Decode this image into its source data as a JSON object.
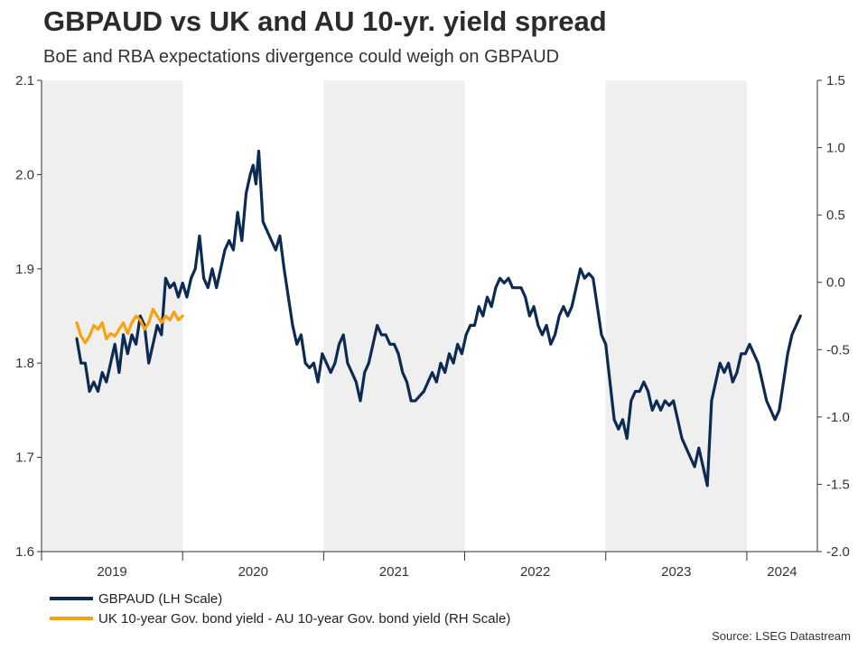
{
  "header": {
    "title": "GBPAUD vs UK and AU 10-yr. yield spread",
    "subtitle": "BoE and RBA expectations divergence could weigh on GBPAUD"
  },
  "source": "Source: LSEG Datastream",
  "colors": {
    "gbpaud": "#0d2a52",
    "spread": "#f7a20e",
    "shade": "#efefef",
    "axis": "#333333"
  },
  "chart_data": {
    "type": "line",
    "title": "GBPAUD vs UK and AU 10-yr. yield spread",
    "subtitle": "BoE and RBA expectations divergence could weigh on GBPAUD",
    "x_unit": "year (decimal)",
    "xlim": [
      2019.0,
      2024.5
    ],
    "xtick_labels": [
      "2019",
      "2020",
      "2021",
      "2022",
      "2023",
      "2024"
    ],
    "shaded_years": [
      "2019",
      "2021",
      "2023"
    ],
    "left_axis": {
      "ylim": [
        1.6,
        2.1
      ],
      "ticks": [
        "1.6",
        "1.7",
        "1.8",
        "1.9",
        "2.0",
        "2.1"
      ]
    },
    "right_axis": {
      "ylim": [
        -2.0,
        1.5
      ],
      "ticks": [
        "-2.0",
        "-1.5",
        "-1.0",
        "-0.5",
        "0.0",
        "0.5",
        "1.0",
        "1.5"
      ]
    },
    "legend_position": "bottom-left",
    "series": [
      {
        "name": "GBPAUD (LH Scale)",
        "axis": "left",
        "points": [
          [
            2019.25,
            1.826
          ],
          [
            2019.28,
            1.8
          ],
          [
            2019.31,
            1.8
          ],
          [
            2019.34,
            1.77
          ],
          [
            2019.37,
            1.78
          ],
          [
            2019.4,
            1.77
          ],
          [
            2019.43,
            1.79
          ],
          [
            2019.46,
            1.78
          ],
          [
            2019.49,
            1.8
          ],
          [
            2019.52,
            1.82
          ],
          [
            2019.55,
            1.79
          ],
          [
            2019.58,
            1.83
          ],
          [
            2019.61,
            1.81
          ],
          [
            2019.64,
            1.83
          ],
          [
            2019.67,
            1.82
          ],
          [
            2019.7,
            1.85
          ],
          [
            2019.73,
            1.84
          ],
          [
            2019.76,
            1.8
          ],
          [
            2019.79,
            1.82
          ],
          [
            2019.82,
            1.84
          ],
          [
            2019.85,
            1.83
          ],
          [
            2019.88,
            1.89
          ],
          [
            2019.91,
            1.88
          ],
          [
            2019.94,
            1.885
          ],
          [
            2019.97,
            1.87
          ],
          [
            2020.0,
            1.885
          ],
          [
            2020.03,
            1.87
          ],
          [
            2020.06,
            1.89
          ],
          [
            2020.09,
            1.9
          ],
          [
            2020.12,
            1.935
          ],
          [
            2020.15,
            1.89
          ],
          [
            2020.18,
            1.88
          ],
          [
            2020.21,
            1.9
          ],
          [
            2020.24,
            1.88
          ],
          [
            2020.27,
            1.9
          ],
          [
            2020.3,
            1.92
          ],
          [
            2020.33,
            1.93
          ],
          [
            2020.36,
            1.92
          ],
          [
            2020.39,
            1.96
          ],
          [
            2020.42,
            1.93
          ],
          [
            2020.45,
            1.98
          ],
          [
            2020.48,
            2.0
          ],
          [
            2020.5,
            2.01
          ],
          [
            2020.52,
            1.99
          ],
          [
            2020.54,
            2.025
          ],
          [
            2020.57,
            1.95
          ],
          [
            2020.6,
            1.94
          ],
          [
            2020.63,
            1.93
          ],
          [
            2020.66,
            1.92
          ],
          [
            2020.69,
            1.935
          ],
          [
            2020.72,
            1.9
          ],
          [
            2020.75,
            1.87
          ],
          [
            2020.78,
            1.84
          ],
          [
            2020.81,
            1.82
          ],
          [
            2020.84,
            1.83
          ],
          [
            2020.87,
            1.8
          ],
          [
            2020.9,
            1.795
          ],
          [
            2020.93,
            1.8
          ],
          [
            2020.96,
            1.78
          ],
          [
            2020.99,
            1.81
          ],
          [
            2021.02,
            1.8
          ],
          [
            2021.05,
            1.79
          ],
          [
            2021.08,
            1.8
          ],
          [
            2021.11,
            1.82
          ],
          [
            2021.14,
            1.83
          ],
          [
            2021.17,
            1.8
          ],
          [
            2021.2,
            1.79
          ],
          [
            2021.23,
            1.78
          ],
          [
            2021.26,
            1.76
          ],
          [
            2021.29,
            1.79
          ],
          [
            2021.32,
            1.8
          ],
          [
            2021.35,
            1.82
          ],
          [
            2021.38,
            1.84
          ],
          [
            2021.41,
            1.83
          ],
          [
            2021.44,
            1.83
          ],
          [
            2021.47,
            1.82
          ],
          [
            2021.5,
            1.82
          ],
          [
            2021.53,
            1.81
          ],
          [
            2021.56,
            1.79
          ],
          [
            2021.59,
            1.78
          ],
          [
            2021.62,
            1.76
          ],
          [
            2021.65,
            1.76
          ],
          [
            2021.68,
            1.765
          ],
          [
            2021.71,
            1.77
          ],
          [
            2021.74,
            1.78
          ],
          [
            2021.77,
            1.79
          ],
          [
            2021.8,
            1.78
          ],
          [
            2021.83,
            1.8
          ],
          [
            2021.86,
            1.79
          ],
          [
            2021.89,
            1.81
          ],
          [
            2021.92,
            1.8
          ],
          [
            2021.95,
            1.82
          ],
          [
            2021.98,
            1.81
          ],
          [
            2022.01,
            1.83
          ],
          [
            2022.04,
            1.84
          ],
          [
            2022.07,
            1.84
          ],
          [
            2022.1,
            1.86
          ],
          [
            2022.13,
            1.85
          ],
          [
            2022.16,
            1.87
          ],
          [
            2022.19,
            1.86
          ],
          [
            2022.22,
            1.88
          ],
          [
            2022.25,
            1.89
          ],
          [
            2022.28,
            1.885
          ],
          [
            2022.31,
            1.89
          ],
          [
            2022.34,
            1.88
          ],
          [
            2022.37,
            1.88
          ],
          [
            2022.4,
            1.88
          ],
          [
            2022.43,
            1.87
          ],
          [
            2022.46,
            1.85
          ],
          [
            2022.49,
            1.86
          ],
          [
            2022.52,
            1.84
          ],
          [
            2022.55,
            1.83
          ],
          [
            2022.58,
            1.84
          ],
          [
            2022.61,
            1.82
          ],
          [
            2022.64,
            1.83
          ],
          [
            2022.67,
            1.85
          ],
          [
            2022.7,
            1.86
          ],
          [
            2022.73,
            1.85
          ],
          [
            2022.76,
            1.86
          ],
          [
            2022.79,
            1.88
          ],
          [
            2022.82,
            1.9
          ],
          [
            2022.85,
            1.89
          ],
          [
            2022.88,
            1.895
          ],
          [
            2022.91,
            1.89
          ],
          [
            2022.94,
            1.86
          ],
          [
            2022.97,
            1.83
          ],
          [
            2023.0,
            1.82
          ],
          [
            2023.03,
            1.78
          ],
          [
            2023.06,
            1.74
          ],
          [
            2023.09,
            1.73
          ],
          [
            2023.12,
            1.74
          ],
          [
            2023.15,
            1.72
          ],
          [
            2023.18,
            1.76
          ],
          [
            2023.21,
            1.77
          ],
          [
            2023.24,
            1.77
          ],
          [
            2023.27,
            1.78
          ],
          [
            2023.3,
            1.77
          ],
          [
            2023.33,
            1.75
          ],
          [
            2023.36,
            1.76
          ],
          [
            2023.39,
            1.75
          ],
          [
            2023.42,
            1.76
          ],
          [
            2023.45,
            1.755
          ],
          [
            2023.48,
            1.76
          ],
          [
            2023.51,
            1.74
          ],
          [
            2023.54,
            1.72
          ],
          [
            2023.57,
            1.71
          ],
          [
            2023.6,
            1.7
          ],
          [
            2023.63,
            1.69
          ],
          [
            2023.66,
            1.71
          ],
          [
            2023.69,
            1.69
          ],
          [
            2023.72,
            1.67
          ],
          [
            2023.75,
            1.76
          ],
          [
            2023.78,
            1.78
          ],
          [
            2023.81,
            1.8
          ],
          [
            2023.84,
            1.79
          ],
          [
            2023.87,
            1.8
          ],
          [
            2023.9,
            1.78
          ],
          [
            2023.93,
            1.79
          ],
          [
            2023.96,
            1.81
          ],
          [
            2023.99,
            1.81
          ],
          [
            2024.02,
            1.82
          ],
          [
            2024.05,
            1.81
          ],
          [
            2024.08,
            1.8
          ],
          [
            2024.11,
            1.78
          ],
          [
            2024.14,
            1.76
          ],
          [
            2024.17,
            1.75
          ],
          [
            2024.2,
            1.74
          ],
          [
            2024.23,
            1.75
          ],
          [
            2024.26,
            1.78
          ],
          [
            2024.29,
            1.81
          ],
          [
            2024.32,
            1.83
          ],
          [
            2024.35,
            1.84
          ],
          [
            2024.38,
            1.85
          ]
        ]
      },
      {
        "name": "UK 10-year Gov. bond yield - AU 10-year Gov. bond yield (RH Scale)",
        "axis": "right",
        "points": [
          [
            2019.25,
            -0.3
          ],
          [
            2019.28,
            -0.4
          ],
          [
            2019.31,
            -0.45
          ],
          [
            2019.34,
            -0.4
          ],
          [
            2019.37,
            -0.32
          ],
          [
            2019.4,
            -0.35
          ],
          [
            2019.43,
            -0.3
          ],
          [
            2019.46,
            -0.42
          ],
          [
            2019.49,
            -0.38
          ],
          [
            2019.52,
            -0.4
          ],
          [
            2019.55,
            -0.35
          ],
          [
            2019.58,
            -0.3
          ],
          [
            2019.61,
            -0.38
          ],
          [
            2019.64,
            -0.3
          ],
          [
            2019.67,
            -0.25
          ],
          [
            2019.7,
            -0.28
          ],
          [
            2019.73,
            -0.35
          ],
          [
            2019.76,
            -0.3
          ],
          [
            2019.79,
            -0.2
          ],
          [
            2019.82,
            -0.25
          ],
          [
            2019.85,
            -0.3
          ],
          [
            2019.88,
            -0.25
          ],
          [
            2019.91,
            -0.28
          ],
          [
            2019.94,
            -0.22
          ],
          [
            2019.97,
            -0.28
          ],
          [
            2020.0,
            -0.25
          ]
        ]
      }
    ]
  },
  "legend": {
    "items": [
      {
        "label": "GBPAUD (LH Scale)"
      },
      {
        "label": "UK 10-year Gov. bond yield - AU 10-year Gov. bond yield (RH Scale)"
      }
    ]
  }
}
